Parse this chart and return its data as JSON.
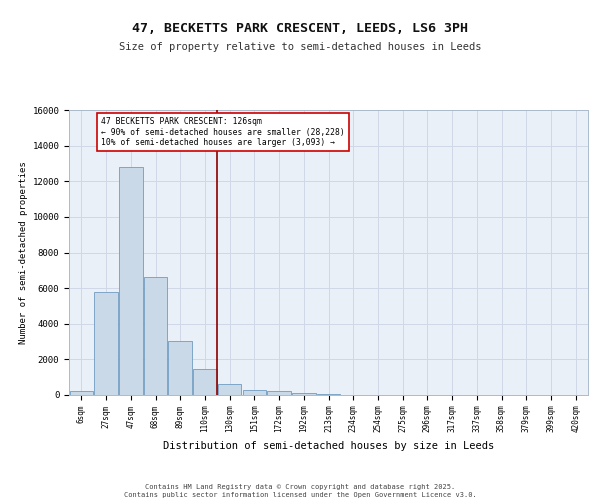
{
  "title1": "47, BECKETTS PARK CRESCENT, LEEDS, LS6 3PH",
  "title2": "Size of property relative to semi-detached houses in Leeds",
  "xlabel": "Distribution of semi-detached houses by size in Leeds",
  "ylabel": "Number of semi-detached properties",
  "categories": [
    "6sqm",
    "27sqm",
    "47sqm",
    "68sqm",
    "89sqm",
    "110sqm",
    "130sqm",
    "151sqm",
    "172sqm",
    "192sqm",
    "213sqm",
    "234sqm",
    "254sqm",
    "275sqm",
    "296sqm",
    "317sqm",
    "337sqm",
    "358sqm",
    "379sqm",
    "399sqm",
    "420sqm"
  ],
  "bar_heights": [
    250,
    5800,
    12800,
    6600,
    3050,
    1450,
    620,
    280,
    200,
    130,
    75,
    0,
    0,
    0,
    0,
    0,
    0,
    0,
    0,
    0,
    0
  ],
  "bar_color": "#c9d9e8",
  "bar_edge_color": "#5b8db8",
  "vline_x": 5.5,
  "vline_color": "#8b0000",
  "annotation_text": "47 BECKETTS PARK CRESCENT: 126sqm\n← 90% of semi-detached houses are smaller (28,228)\n10% of semi-detached houses are larger (3,093) →",
  "annotation_box_color": "#ffffff",
  "annotation_box_edge": "#cc0000",
  "ylim": [
    0,
    16000
  ],
  "yticks": [
    0,
    2000,
    4000,
    6000,
    8000,
    10000,
    12000,
    14000,
    16000
  ],
  "grid_color": "#d0d8e8",
  "bg_color": "#eaf0f8",
  "footer1": "Contains HM Land Registry data © Crown copyright and database right 2025.",
  "footer2": "Contains public sector information licensed under the Open Government Licence v3.0."
}
